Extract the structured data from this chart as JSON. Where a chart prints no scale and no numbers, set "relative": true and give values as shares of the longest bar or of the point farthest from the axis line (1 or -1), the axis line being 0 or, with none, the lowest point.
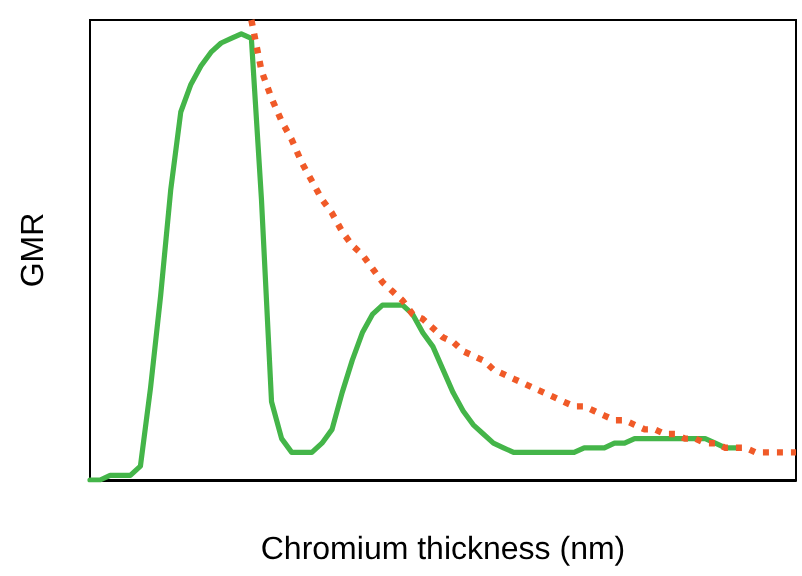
{
  "chart_data": {
    "type": "line",
    "relative": true,
    "xlabel": "Chromium thickness (nm)",
    "ylabel": "GMR",
    "grid": false,
    "categories": [
      null,
      null,
      null,
      null,
      null,
      null,
      null,
      null,
      null,
      null,
      null,
      null,
      null,
      null,
      null,
      null,
      null,
      null,
      null,
      null,
      null,
      null,
      null,
      null,
      null,
      null,
      null,
      null,
      null,
      null,
      null,
      null,
      null,
      null,
      null,
      null,
      null,
      null,
      null,
      null,
      null,
      null,
      null,
      null,
      null,
      null,
      null,
      null,
      null,
      null,
      null,
      null,
      null,
      null,
      null,
      null,
      null,
      null,
      null,
      null,
      null,
      null,
      null,
      null,
      null,
      null,
      null,
      null,
      null,
      null,
      null
    ],
    "series": [
      {
        "color": "#44b549",
        "line_style": "solid",
        "values": [
          0,
          0,
          0.01,
          0.01,
          0.01,
          0.03,
          0.2,
          0.4,
          0.63,
          0.8,
          0.86,
          0.9,
          0.93,
          0.95,
          0.96,
          0.97,
          0.96,
          0.61,
          0.17,
          0.09,
          0.06,
          0.06,
          0.06,
          0.08,
          0.11,
          0.19,
          0.26,
          0.32,
          0.36,
          0.38,
          0.38,
          0.38,
          0.36,
          0.32,
          0.29,
          0.24,
          0.19,
          0.15,
          0.12,
          0.1,
          0.08,
          0.07,
          0.06,
          0.06,
          0.06,
          0.06,
          0.06,
          0.06,
          0.06,
          0.07,
          0.07,
          0.07,
          0.08,
          0.08,
          0.09,
          0.09,
          0.09,
          0.09,
          0.09,
          0.09,
          0.09,
          0.09,
          0.08,
          0.07,
          0.07,
          null,
          null,
          null,
          null,
          null,
          null
        ]
      },
      {
        "color": "#f05a28",
        "line_style": "dotted",
        "values": [
          null,
          null,
          null,
          null,
          null,
          null,
          null,
          null,
          null,
          null,
          null,
          null,
          null,
          null,
          null,
          null,
          1,
          0.89,
          0.83,
          0.78,
          0.74,
          0.69,
          0.65,
          0.61,
          0.58,
          0.54,
          0.51,
          0.49,
          0.46,
          0.43,
          0.41,
          0.39,
          0.36,
          0.35,
          0.33,
          0.31,
          0.3,
          0.28,
          0.27,
          0.26,
          0.24,
          0.23,
          0.22,
          0.21,
          0.2,
          0.19,
          0.18,
          0.17,
          0.16,
          0.16,
          0.15,
          0.14,
          0.13,
          0.13,
          0.12,
          0.11,
          0.11,
          0.1,
          0.1,
          0.09,
          0.09,
          0.08,
          0.08,
          0.07,
          0.07,
          0.07,
          0.06,
          0.06,
          0.06,
          0.06,
          0.06
        ]
      }
    ]
  }
}
